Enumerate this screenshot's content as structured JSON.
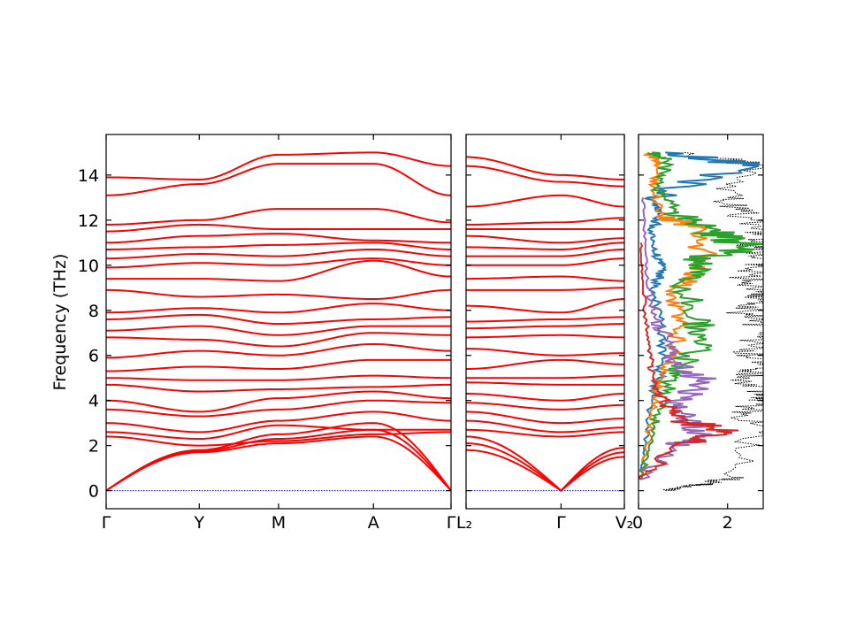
{
  "chart_data": [
    {
      "type": "line",
      "panel": "band-structure-segment-1",
      "ylabel": "Frequency (THz)",
      "ylim": [
        -0.8,
        15.8
      ],
      "yticks": [
        0,
        2,
        4,
        6,
        8,
        10,
        12,
        14
      ],
      "xtick_labels": [
        "Γ",
        "Y",
        "M",
        "A",
        "Γ"
      ],
      "xtick_positions": [
        0,
        0.27,
        0.5,
        0.775,
        1.0
      ],
      "line_color": "#ff0000",
      "zero_line_color": "#0000ff",
      "bands_at_nodes": [
        [
          0,
          1.7,
          2.1,
          2.4,
          0
        ],
        [
          0,
          1.75,
          2.3,
          2.7,
          0
        ],
        [
          0,
          1.8,
          2.5,
          3.0,
          0
        ],
        [
          2.4,
          2.0,
          2.2,
          2.5,
          2.6
        ],
        [
          2.6,
          2.3,
          2.9,
          2.7,
          2.7
        ],
        [
          3.0,
          2.6,
          3.1,
          3.5,
          3.1
        ],
        [
          3.6,
          3.3,
          3.6,
          4.0,
          3.9
        ],
        [
          4.0,
          3.5,
          4.1,
          4.4,
          4.1
        ],
        [
          4.7,
          4.4,
          4.5,
          4.6,
          4.7
        ],
        [
          5.0,
          4.9,
          4.9,
          5.1,
          5.0
        ],
        [
          5.3,
          5.5,
          5.4,
          5.8,
          5.8
        ],
        [
          5.9,
          6.2,
          6.0,
          6.5,
          6.2
        ],
        [
          6.8,
          6.7,
          6.4,
          7.0,
          6.9
        ],
        [
          7.1,
          7.3,
          6.9,
          7.3,
          7.3
        ],
        [
          7.6,
          7.8,
          7.4,
          7.6,
          7.7
        ],
        [
          7.9,
          8.1,
          7.9,
          8.3,
          8.0
        ],
        [
          8.9,
          8.6,
          8.7,
          8.5,
          8.9
        ],
        [
          9.4,
          9.4,
          9.3,
          10.2,
          9.5
        ],
        [
          9.9,
          10.1,
          10.0,
          10.3,
          10.0
        ],
        [
          10.3,
          10.5,
          10.4,
          10.7,
          10.4
        ],
        [
          10.7,
          10.8,
          10.9,
          11.0,
          10.7
        ],
        [
          11.0,
          11.3,
          11.4,
          11.1,
          11.0
        ],
        [
          11.5,
          11.8,
          11.6,
          11.6,
          11.6
        ],
        [
          11.8,
          12.0,
          12.5,
          12.5,
          11.9
        ],
        [
          13.1,
          13.6,
          14.5,
          14.5,
          13.1
        ],
        [
          13.9,
          13.8,
          14.9,
          15.0,
          14.4
        ]
      ]
    },
    {
      "type": "line",
      "panel": "band-structure-segment-2",
      "ylim": [
        -0.8,
        15.8
      ],
      "xtick_labels": [
        "L₂",
        "Γ",
        "V₂"
      ],
      "xtick_positions": [
        0,
        0.6,
        1.0
      ],
      "line_color": "#ff0000",
      "zero_line_color": "#0000ff",
      "bands_at_nodes": [
        [
          1.8,
          0,
          1.9
        ],
        [
          2.1,
          0,
          1.7
        ],
        [
          2.4,
          0,
          1.5
        ],
        [
          2.7,
          2.4,
          2.6
        ],
        [
          3.1,
          2.6,
          2.8
        ],
        [
          3.5,
          3.0,
          3.2
        ],
        [
          3.9,
          3.6,
          3.8
        ],
        [
          4.3,
          4.0,
          4.3
        ],
        [
          4.8,
          4.7,
          4.7
        ],
        [
          5.0,
          5.0,
          5.1
        ],
        [
          5.4,
          5.8,
          5.6
        ],
        [
          6.3,
          6.0,
          6.1
        ],
        [
          6.8,
          6.9,
          6.8
        ],
        [
          7.2,
          7.3,
          7.4
        ],
        [
          7.5,
          7.6,
          7.7
        ],
        [
          8.2,
          7.9,
          8.5
        ],
        [
          8.9,
          8.9,
          9.0
        ],
        [
          9.4,
          9.5,
          9.3
        ],
        [
          10.0,
          10.0,
          10.3
        ],
        [
          10.4,
          10.4,
          10.7
        ],
        [
          10.8,
          10.7,
          11.0
        ],
        [
          11.3,
          11.0,
          11.2
        ],
        [
          11.6,
          11.6,
          11.6
        ],
        [
          11.8,
          11.9,
          12.1
        ],
        [
          12.6,
          13.1,
          12.6
        ],
        [
          14.4,
          13.7,
          13.5
        ],
        [
          14.8,
          14.0,
          13.8
        ]
      ]
    },
    {
      "type": "line",
      "panel": "density-of-states",
      "ylim": [
        -0.8,
        15.8
      ],
      "xticks": [
        0,
        2
      ],
      "xlim": [
        0,
        2.8
      ],
      "series": [
        {
          "kind": "total",
          "color": "#000000",
          "style": "dotted",
          "points": [
            [
              0.6,
              0
            ],
            [
              1.1,
              0.2
            ],
            [
              1.6,
              0.3
            ],
            [
              2.1,
              0.6
            ],
            [
              2.7,
              2.6
            ],
            [
              2.3,
              3.4
            ],
            [
              2.9,
              4.0
            ],
            [
              3.0,
              4.3
            ],
            [
              2.5,
              5.0
            ],
            [
              2.8,
              5.5
            ],
            [
              2.6,
              6.2
            ],
            [
              2.7,
              6.8
            ],
            [
              3.0,
              7.2
            ],
            [
              2.4,
              7.8
            ],
            [
              2.7,
              8.4
            ],
            [
              2.8,
              8.9
            ],
            [
              2.5,
              9.4
            ],
            [
              2.9,
              10.2
            ],
            [
              2.6,
              10.8
            ],
            [
              2.9,
              11.2
            ],
            [
              2.7,
              11.8
            ],
            [
              2.3,
              12.4
            ],
            [
              2.0,
              13.0
            ],
            [
              2.8,
              14.4
            ],
            [
              1.0,
              15.0
            ]
          ]
        },
        {
          "kind": "projected-1",
          "color": "#1f77b4",
          "style": "solid",
          "points": [
            [
              0.05,
              0.5
            ],
            [
              0.15,
              2.0
            ],
            [
              0.3,
              4.0
            ],
            [
              0.45,
              5.0
            ],
            [
              0.6,
              6.0
            ],
            [
              0.5,
              7.5
            ],
            [
              0.3,
              9.0
            ],
            [
              0.6,
              9.8
            ],
            [
              0.35,
              10.5
            ],
            [
              0.3,
              11.5
            ],
            [
              0.5,
              12.4
            ],
            [
              0.2,
              13.0
            ],
            [
              2.7,
              14.4
            ],
            [
              0.6,
              15.0
            ]
          ]
        },
        {
          "kind": "projected-2",
          "color": "#ff7f0e",
          "style": "solid",
          "points": [
            [
              0.05,
              0.5
            ],
            [
              0.25,
              2.5
            ],
            [
              0.4,
              4.2
            ],
            [
              0.5,
              5.2
            ],
            [
              0.8,
              6.2
            ],
            [
              0.95,
              7.3
            ],
            [
              0.8,
              8.5
            ],
            [
              1.2,
              9.5
            ],
            [
              1.4,
              10.2
            ],
            [
              1.5,
              11.6
            ],
            [
              0.5,
              12.2
            ],
            [
              0.3,
              13.5
            ],
            [
              0.5,
              14.5
            ],
            [
              0.2,
              15.0
            ]
          ]
        },
        {
          "kind": "projected-3",
          "color": "#2ca02c",
          "style": "solid",
          "points": [
            [
              0.05,
              0.5
            ],
            [
              0.3,
              2.3
            ],
            [
              0.45,
              3.5
            ],
            [
              0.7,
              4.7
            ],
            [
              1.0,
              5.6
            ],
            [
              1.5,
              6.9
            ],
            [
              1.3,
              7.6
            ],
            [
              1.0,
              9.3
            ],
            [
              1.5,
              10.2
            ],
            [
              2.4,
              10.9
            ],
            [
              1.6,
              11.5
            ],
            [
              0.8,
              12.4
            ],
            [
              0.4,
              13.6
            ],
            [
              0.7,
              14.7
            ],
            [
              0.3,
              15.0
            ]
          ]
        },
        {
          "kind": "projected-4",
          "color": "#9467bd",
          "style": "solid",
          "points": [
            [
              0.05,
              0.5
            ],
            [
              0.8,
              2.0
            ],
            [
              1.5,
              2.4
            ],
            [
              1.2,
              3.0
            ],
            [
              0.8,
              4.0
            ],
            [
              1.6,
              4.8
            ],
            [
              0.8,
              5.6
            ],
            [
              0.7,
              6.5
            ],
            [
              0.4,
              7.6
            ],
            [
              0.2,
              9.0
            ],
            [
              0.15,
              11.0
            ],
            [
              0.1,
              13.0
            ]
          ]
        },
        {
          "kind": "projected-5",
          "color": "#d62728",
          "style": "solid",
          "points": [
            [
              0.05,
              0.5
            ],
            [
              0.9,
              2.1
            ],
            [
              2.0,
              2.6
            ],
            [
              1.1,
              3.1
            ],
            [
              0.6,
              3.8
            ],
            [
              0.4,
              4.6
            ],
            [
              0.3,
              5.6
            ],
            [
              0.2,
              7.0
            ],
            [
              0.1,
              9.0
            ],
            [
              0.05,
              11.0
            ]
          ]
        }
      ]
    }
  ]
}
